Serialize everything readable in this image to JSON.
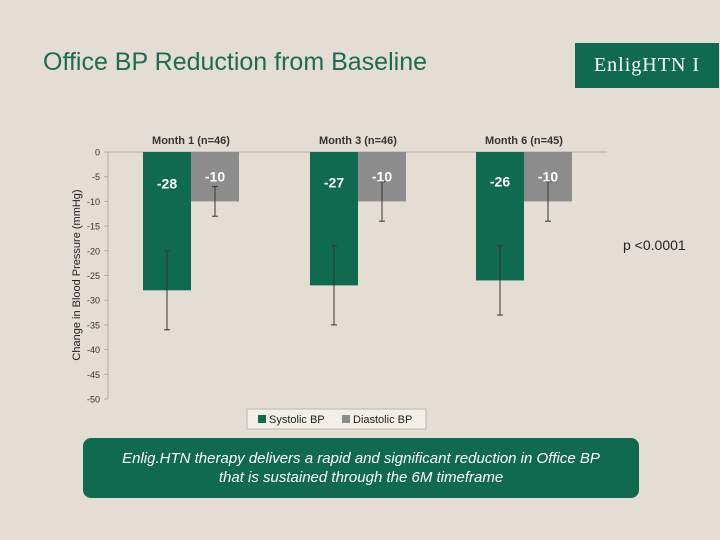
{
  "slide": {
    "title": "Office BP Reduction from Baseline",
    "logo_text": "EnligHTN I",
    "p_value": "p <0.0001",
    "callout_text": "Enlig.HTN therapy delivers a rapid and significant reduction in Office BP that is sustained through the 6M timeframe"
  },
  "colors": {
    "background": "#e4ddd3",
    "accent_green": "#0f6a4f",
    "title_green": "#1d6b53",
    "diastolic_gray": "#8c8c8c"
  },
  "chart_data": {
    "type": "bar",
    "title": "",
    "categories": [
      "Month 1 (n=46)",
      "Month 3 (n=46)",
      "Month 6 (n=45)"
    ],
    "series": [
      {
        "name": "Systolic BP",
        "values": [
          -28,
          -27,
          -26
        ],
        "color": "#0f6a4f"
      },
      {
        "name": "Diastolic BP",
        "values": [
          -10,
          -10,
          -10
        ],
        "color": "#8c8c8c"
      }
    ],
    "error_bars": {
      "Systolic BP": [
        [
          -36,
          -20
        ],
        [
          -35,
          -19
        ],
        [
          -33,
          -19
        ]
      ],
      "Diastolic BP": [
        [
          -13,
          -7
        ],
        [
          -14,
          -6
        ],
        [
          -14,
          -6
        ]
      ]
    },
    "data_labels": [
      [
        "-28",
        "-27",
        "-26"
      ],
      [
        "-10",
        "-10",
        "-10"
      ]
    ],
    "ylabel": "Change in Blood Pressure (mmHg)",
    "xlabel": "",
    "ylim": [
      -50,
      0
    ],
    "yticks": [
      0,
      -5,
      -10,
      -15,
      -20,
      -25,
      -30,
      -35,
      -40,
      -45,
      -50
    ],
    "category_labels_position": "top",
    "legend": "bottom-center",
    "grid": false
  }
}
